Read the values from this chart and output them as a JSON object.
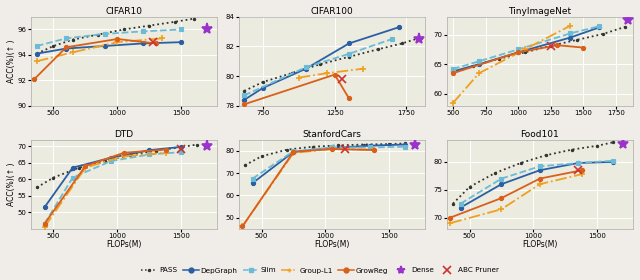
{
  "subplots": [
    {
      "title": "CIFAR10",
      "xlabel": "",
      "ylabel": "ACC(%)(↑ )",
      "ylim": [
        90,
        97
      ],
      "xlim": [
        320,
        1780
      ],
      "xticks": [
        500,
        1000,
        1500
      ],
      "yticks": [
        90,
        92,
        94,
        96
      ],
      "series": {
        "PASS": {
          "x": [
            370,
            500,
            650,
            850,
            1050,
            1250,
            1450,
            1600
          ],
          "y": [
            94.1,
            94.7,
            95.2,
            95.6,
            96.0,
            96.3,
            96.6,
            96.85
          ],
          "color": "#333333",
          "linestyle": "dotted",
          "marker": ".",
          "ms": 2.5,
          "lw": 1.3
        },
        "DepGraph": {
          "x": [
            370,
            600,
            900,
            1200,
            1500
          ],
          "y": [
            94.1,
            94.5,
            94.7,
            94.9,
            95.0
          ],
          "color": "#2a5fa5",
          "linestyle": "solid",
          "marker": "o",
          "ms": 3,
          "lw": 1.3
        },
        "Slim": {
          "x": [
            370,
            600,
            900,
            1200,
            1500
          ],
          "y": [
            94.7,
            95.3,
            95.65,
            95.85,
            96.0
          ],
          "color": "#6bbbd8",
          "linestyle": "dashed",
          "marker": "s",
          "ms": 3,
          "lw": 1.3
        },
        "Group-L1": {
          "x": [
            370,
            650,
            1000,
            1350
          ],
          "y": [
            93.5,
            94.2,
            95.0,
            95.3
          ],
          "color": "#f0a020",
          "linestyle": "dashdot",
          "marker": "+",
          "ms": 4,
          "lw": 1.3
        },
        "GrowReg": {
          "x": [
            350,
            600,
            1000,
            1300
          ],
          "y": [
            92.1,
            94.6,
            95.25,
            94.9
          ],
          "color": "#d95f1a",
          "linestyle": "solid",
          "marker": "o",
          "ms": 3,
          "lw": 1.3
        },
        "Dense": {
          "x": [
            1700
          ],
          "y": [
            96.0
          ],
          "color": "#9933cc",
          "marker": "*",
          "ms": 8
        },
        "ABC Pruner": {
          "x": [
            1280
          ],
          "y": [
            95.0
          ],
          "color": "#cc3333",
          "marker": "x",
          "ms": 6
        }
      }
    },
    {
      "title": "CIFAR100",
      "xlabel": "",
      "ylabel": "",
      "ylim": [
        78,
        84
      ],
      "xlim": [
        580,
        1880
      ],
      "xticks": [
        750,
        1250,
        1750
      ],
      "yticks": [
        78,
        80,
        82,
        84
      ],
      "series": {
        "PASS": {
          "x": [
            620,
            750,
            950,
            1150,
            1350,
            1550,
            1720,
            1850
          ],
          "y": [
            79.0,
            79.6,
            80.2,
            80.8,
            81.3,
            81.8,
            82.2,
            82.6
          ],
          "color": "#333333",
          "linestyle": "dotted",
          "marker": ".",
          "ms": 2.5,
          "lw": 1.3
        },
        "DepGraph": {
          "x": [
            620,
            750,
            1050,
            1350,
            1700
          ],
          "y": [
            78.4,
            79.2,
            80.5,
            82.2,
            83.3
          ],
          "color": "#2a5fa5",
          "linestyle": "solid",
          "marker": "o",
          "ms": 3,
          "lw": 1.3
        },
        "Slim": {
          "x": [
            620,
            1050,
            1350,
            1650
          ],
          "y": [
            78.7,
            80.6,
            81.5,
            82.5
          ],
          "color": "#6bbbd8",
          "linestyle": "dashed",
          "marker": "s",
          "ms": 3,
          "lw": 1.3
        },
        "Group-L1": {
          "x": [
            1000,
            1200,
            1450
          ],
          "y": [
            79.9,
            80.2,
            80.5
          ],
          "color": "#f0a020",
          "linestyle": "dashdot",
          "marker": "+",
          "ms": 4,
          "lw": 1.3
        },
        "GrowReg": {
          "x": [
            620,
            1250,
            1350
          ],
          "y": [
            78.1,
            80.1,
            78.5
          ],
          "color": "#d95f1a",
          "linestyle": "solid",
          "marker": "o",
          "ms": 3,
          "lw": 1.3
        },
        "Dense": {
          "x": [
            1840
          ],
          "y": [
            82.5
          ],
          "color": "#9933cc",
          "marker": "*",
          "ms": 8
        },
        "ABC Pruner": {
          "x": [
            1300
          ],
          "y": [
            79.8
          ],
          "color": "#cc3333",
          "marker": "x",
          "ms": 6
        }
      }
    },
    {
      "title": "TinyImageNet",
      "xlabel": "",
      "ylabel": "",
      "ylim": [
        58,
        73
      ],
      "xlim": [
        450,
        1880
      ],
      "xticks": [
        500,
        750,
        1000,
        1250,
        1500,
        1750
      ],
      "yticks": [
        60,
        65,
        70
      ],
      "series": {
        "PASS": {
          "x": [
            500,
            650,
            850,
            1050,
            1250,
            1450,
            1650,
            1820
          ],
          "y": [
            63.5,
            64.7,
            65.9,
            67.0,
            68.1,
            69.1,
            70.1,
            71.3
          ],
          "color": "#333333",
          "linestyle": "dotted",
          "marker": ".",
          "ms": 2.5,
          "lw": 1.3
        },
        "DepGraph": {
          "x": [
            500,
            700,
            1000,
            1400,
            1620
          ],
          "y": [
            63.8,
            65.0,
            67.0,
            69.5,
            71.2
          ],
          "color": "#2a5fa5",
          "linestyle": "solid",
          "marker": "o",
          "ms": 3,
          "lw": 1.3
        },
        "Slim": {
          "x": [
            500,
            700,
            1000,
            1400,
            1620
          ],
          "y": [
            64.2,
            65.5,
            67.5,
            70.2,
            71.4
          ],
          "color": "#6bbbd8",
          "linestyle": "dashed",
          "marker": "s",
          "ms": 3,
          "lw": 1.3
        },
        "Group-L1": {
          "x": [
            500,
            700,
            1050,
            1400
          ],
          "y": [
            58.5,
            63.5,
            67.5,
            71.5
          ],
          "color": "#f0a020",
          "linestyle": "dashdot",
          "marker": "+",
          "ms": 4,
          "lw": 1.3
        },
        "GrowReg": {
          "x": [
            500,
            1000,
            1300,
            1500
          ],
          "y": [
            63.5,
            67.0,
            68.2,
            67.8
          ],
          "color": "#d95f1a",
          "linestyle": "solid",
          "marker": "o",
          "ms": 3,
          "lw": 1.3
        },
        "Dense": {
          "x": [
            1840
          ],
          "y": [
            72.5
          ],
          "color": "#9933cc",
          "marker": "*",
          "ms": 8
        },
        "ABC Pruner": {
          "x": [
            1250
          ],
          "y": [
            68.0
          ],
          "color": "#cc3333",
          "marker": "x",
          "ms": 6
        }
      }
    },
    {
      "title": "DTD",
      "xlabel": "FLOPs(M)",
      "ylabel": "ACC(%)(↑ )",
      "ylim": [
        45,
        72
      ],
      "xlim": [
        320,
        1780
      ],
      "xticks": [
        500,
        1000,
        1500
      ],
      "yticks": [
        50,
        55,
        60,
        65,
        70
      ],
      "series": {
        "PASS": {
          "x": [
            370,
            500,
            700,
            900,
            1100,
            1300,
            1500,
            1620
          ],
          "y": [
            57.5,
            60.5,
            63.5,
            65.5,
            67.3,
            68.7,
            69.7,
            70.5
          ],
          "color": "#333333",
          "linestyle": "dotted",
          "marker": ".",
          "ms": 2.5,
          "lw": 1.3
        },
        "DepGraph": {
          "x": [
            430,
            650,
            950,
            1250,
            1500
          ],
          "y": [
            51.5,
            63.5,
            66.5,
            68.8,
            69.8
          ],
          "color": "#2a5fa5",
          "linestyle": "solid",
          "marker": "o",
          "ms": 3,
          "lw": 1.3
        },
        "Slim": {
          "x": [
            430,
            650,
            950,
            1250,
            1500
          ],
          "y": [
            46.5,
            60.5,
            65.5,
            67.5,
            68.2
          ],
          "color": "#6bbbd8",
          "linestyle": "dashed",
          "marker": "s",
          "ms": 3,
          "lw": 1.3
        },
        "Group-L1": {
          "x": [
            430,
            750,
            1050,
            1380
          ],
          "y": [
            45.5,
            63.5,
            67.0,
            68.0
          ],
          "color": "#f0a020",
          "linestyle": "dashdot",
          "marker": "+",
          "ms": 4,
          "lw": 1.3
        },
        "GrowReg": {
          "x": [
            430,
            750,
            1050,
            1380
          ],
          "y": [
            46.5,
            64.0,
            68.0,
            69.0
          ],
          "color": "#d95f1a",
          "linestyle": "solid",
          "marker": "o",
          "ms": 3,
          "lw": 1.3
        },
        "Dense": {
          "x": [
            1700
          ],
          "y": [
            70.2
          ],
          "color": "#9933cc",
          "marker": "*",
          "ms": 8
        },
        "ABC Pruner": {
          "x": [
            1500
          ],
          "y": [
            69.2
          ],
          "color": "#cc3333",
          "marker": "x",
          "ms": 6
        }
      }
    },
    {
      "title": "StanfordCars",
      "xlabel": "FLOPs(M)",
      "ylabel": "",
      "ylim": [
        45,
        85
      ],
      "xlim": [
        320,
        1780
      ],
      "xticks": [
        500,
        1000,
        1500
      ],
      "yticks": [
        50,
        60,
        70,
        80
      ],
      "series": {
        "PASS": {
          "x": [
            370,
            500,
            700,
            900,
            1100,
            1300,
            1500,
            1620
          ],
          "y": [
            73.5,
            77.5,
            80.5,
            81.8,
            82.4,
            82.8,
            83.0,
            83.3
          ],
          "color": "#333333",
          "linestyle": "dotted",
          "marker": ".",
          "ms": 2.5,
          "lw": 1.3
        },
        "DepGraph": {
          "x": [
            430,
            750,
            1050,
            1350,
            1620
          ],
          "y": [
            65.5,
            79.5,
            81.2,
            82.3,
            82.8
          ],
          "color": "#2a5fa5",
          "linestyle": "solid",
          "marker": "o",
          "ms": 3,
          "lw": 1.3
        },
        "Slim": {
          "x": [
            430,
            750,
            1050,
            1350,
            1620
          ],
          "y": [
            67.5,
            79.8,
            81.5,
            81.5,
            81.8
          ],
          "color": "#6bbbd8",
          "linestyle": "dashed",
          "marker": "s",
          "ms": 3,
          "lw": 1.3
        },
        "Group-L1": {
          "x": [
            350,
            750,
            1050,
            1380
          ],
          "y": [
            46.0,
            79.0,
            80.8,
            80.5
          ],
          "color": "#f0a020",
          "linestyle": "dashdot",
          "marker": "+",
          "ms": 4,
          "lw": 1.3
        },
        "GrowReg": {
          "x": [
            350,
            750,
            1050,
            1380
          ],
          "y": [
            46.0,
            79.5,
            80.8,
            80.3
          ],
          "color": "#d95f1a",
          "linestyle": "solid",
          "marker": "o",
          "ms": 3,
          "lw": 1.3
        },
        "Dense": {
          "x": [
            1700
          ],
          "y": [
            82.5
          ],
          "color": "#9933cc",
          "marker": "*",
          "ms": 8
        },
        "ABC Pruner": {
          "x": [
            1150
          ],
          "y": [
            80.7
          ],
          "color": "#cc3333",
          "marker": "x",
          "ms": 6
        }
      }
    },
    {
      "title": "Food101",
      "xlabel": "FLOPs(M)",
      "ylabel": "",
      "ylim": [
        68,
        84
      ],
      "xlim": [
        320,
        1780
      ],
      "xticks": [
        500,
        1000,
        1500
      ],
      "yticks": [
        70,
        75,
        80
      ],
      "series": {
        "PASS": {
          "x": [
            370,
            500,
            700,
            900,
            1100,
            1300,
            1500,
            1620
          ],
          "y": [
            72.5,
            75.5,
            78.0,
            79.8,
            81.2,
            82.2,
            82.9,
            83.5
          ],
          "color": "#333333",
          "linestyle": "dotted",
          "marker": ".",
          "ms": 2.5,
          "lw": 1.3
        },
        "DepGraph": {
          "x": [
            430,
            750,
            1050,
            1350,
            1620
          ],
          "y": [
            71.8,
            76.0,
            78.5,
            79.8,
            80.0
          ],
          "color": "#2a5fa5",
          "linestyle": "solid",
          "marker": "o",
          "ms": 3,
          "lw": 1.3
        },
        "Slim": {
          "x": [
            430,
            750,
            1050,
            1350,
            1620
          ],
          "y": [
            72.5,
            77.0,
            79.2,
            79.8,
            80.2
          ],
          "color": "#6bbbd8",
          "linestyle": "dashed",
          "marker": "s",
          "ms": 3,
          "lw": 1.3
        },
        "Group-L1": {
          "x": [
            350,
            750,
            1050,
            1380
          ],
          "y": [
            69.0,
            71.5,
            76.0,
            77.8
          ],
          "color": "#f0a020",
          "linestyle": "dashdot",
          "marker": "+",
          "ms": 4,
          "lw": 1.3
        },
        "GrowReg": {
          "x": [
            350,
            750,
            1050,
            1380
          ],
          "y": [
            70.0,
            73.5,
            77.0,
            78.5
          ],
          "color": "#d95f1a",
          "linestyle": "solid",
          "marker": "o",
          "ms": 3,
          "lw": 1.3
        },
        "Dense": {
          "x": [
            1700
          ],
          "y": [
            83.2
          ],
          "color": "#9933cc",
          "marker": "*",
          "ms": 8
        },
        "ABC Pruner": {
          "x": [
            1350
          ],
          "y": [
            78.5
          ],
          "color": "#cc3333",
          "marker": "x",
          "ms": 6
        }
      }
    }
  ],
  "legend_entries": [
    {
      "label": "PASS",
      "color": "#333333",
      "linestyle": "dotted",
      "marker": "."
    },
    {
      "label": "DepGraph",
      "color": "#2a5fa5",
      "linestyle": "solid",
      "marker": "o"
    },
    {
      "label": "Slim",
      "color": "#6bbbd8",
      "linestyle": "dashed",
      "marker": "s"
    },
    {
      "label": "Group-L1",
      "color": "#f0a020",
      "linestyle": "dashdot",
      "marker": "+"
    },
    {
      "label": "GrowReg",
      "color": "#d95f1a",
      "linestyle": "solid",
      "marker": "o"
    },
    {
      "label": "Dense",
      "color": "#9933cc",
      "linestyle": "none",
      "marker": "*"
    },
    {
      "label": "ABC Pruner",
      "color": "#cc3333",
      "linestyle": "none",
      "marker": "x"
    }
  ],
  "fig_bg": "#f0ede8",
  "ax_bg": "#ebebdf",
  "grid_color": "#ffffff"
}
